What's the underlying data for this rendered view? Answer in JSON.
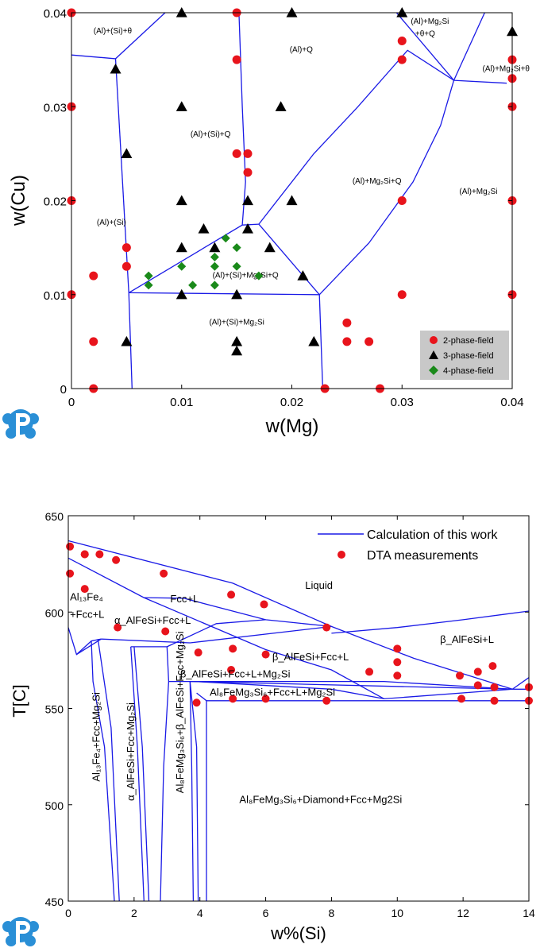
{
  "chart_data": [
    {
      "type": "scatter",
      "title": "",
      "xlabel": "w(Mg)",
      "ylabel": "w(Cu)",
      "xlim": [
        0,
        0.04
      ],
      "ylim": [
        0,
        0.04
      ],
      "xticks": [
        "0",
        "0.01",
        "0.02",
        "0.03",
        "0.04"
      ],
      "yticks": [
        "0",
        "0.01",
        "0.02",
        "0.03",
        "0.04"
      ],
      "grid": false,
      "legend_position": "bottom-right",
      "colors": {
        "two_phase": "#e8141c",
        "three_phase": "#000000",
        "four_phase": "#1a8a1a",
        "line": "#1a1ae6",
        "legend_bg": "#c8c8c8"
      },
      "legend": [
        "2-phase-field",
        "3-phase-field",
        "4-phase-field"
      ],
      "series": [
        {
          "name": "2-phase-field",
          "marker": "circle",
          "x": [
            0,
            0,
            0,
            0,
            0.002,
            0.002,
            0.002,
            0.005,
            0.005,
            0.015,
            0.015,
            0.015,
            0.016,
            0.016,
            0.03,
            0.03,
            0.03,
            0.03,
            0.04,
            0.04,
            0.04,
            0.04,
            0.04,
            0.025,
            0.025,
            0.027,
            0.023,
            0.028
          ],
          "y": [
            0.04,
            0.03,
            0.02,
            0.01,
            0.012,
            0.005,
            0,
            0.015,
            0.013,
            0.04,
            0.035,
            0.025,
            0.025,
            0.023,
            0.037,
            0.035,
            0.02,
            0.01,
            0.035,
            0.033,
            0.03,
            0.02,
            0.01,
            0.007,
            0.005,
            0.005,
            0,
            0
          ]
        },
        {
          "name": "3-phase-field",
          "marker": "triangle",
          "x": [
            0.01,
            0.02,
            0.03,
            0.04,
            0.004,
            0.01,
            0.019,
            0.005,
            0.01,
            0.016,
            0.02,
            0.012,
            0.016,
            0.01,
            0.018,
            0.021,
            0.01,
            0.015,
            0.005,
            0.015,
            0.015,
            0.022,
            0.013
          ],
          "y": [
            0.04,
            0.04,
            0.04,
            0.038,
            0.034,
            0.03,
            0.03,
            0.025,
            0.02,
            0.02,
            0.02,
            0.017,
            0.017,
            0.015,
            0.015,
            0.012,
            0.01,
            0.01,
            0.005,
            0.005,
            0.004,
            0.005,
            0.015
          ]
        },
        {
          "name": "4-phase-field",
          "marker": "diamond",
          "x": [
            0.014,
            0.015,
            0.013,
            0.013,
            0.01,
            0.007,
            0.007,
            0.011,
            0.013,
            0.015,
            0.017
          ],
          "y": [
            0.016,
            0.015,
            0.014,
            0.013,
            0.013,
            0.012,
            0.011,
            0.011,
            0.011,
            0.013,
            0.012
          ]
        }
      ],
      "boundaries": [
        [
          [
            0,
            0.0355
          ],
          [
            0.004,
            0.0351
          ],
          [
            0.0085,
            0.04
          ]
        ],
        [
          [
            0.004,
            0.0351
          ],
          [
            0.0052,
            0.0102
          ]
        ],
        [
          [
            0.0052,
            0.0102
          ],
          [
            0.0055,
            0
          ]
        ],
        [
          [
            0.0052,
            0.0102
          ],
          [
            0.0225,
            0.01
          ]
        ],
        [
          [
            0.0225,
            0.01
          ],
          [
            0.0228,
            0
          ]
        ],
        [
          [
            0.0052,
            0.0102
          ],
          [
            0.0155,
            0.0174
          ],
          [
            0.017,
            0.0175
          ]
        ],
        [
          [
            0.017,
            0.0175
          ],
          [
            0.0225,
            0.01
          ]
        ],
        [
          [
            0.0155,
            0.0174
          ],
          [
            0.0158,
            0.022
          ],
          [
            0.0155,
            0.03
          ],
          [
            0.0152,
            0.04
          ]
        ],
        [
          [
            0.017,
            0.0175
          ],
          [
            0.022,
            0.025
          ],
          [
            0.026,
            0.03
          ],
          [
            0.0305,
            0.036
          ],
          [
            0.0347,
            0.0328
          ]
        ],
        [
          [
            0.0225,
            0.01
          ],
          [
            0.027,
            0.0155
          ],
          [
            0.031,
            0.022
          ],
          [
            0.0335,
            0.028
          ],
          [
            0.0347,
            0.0328
          ]
        ],
        [
          [
            0.0347,
            0.0328
          ],
          [
            0.0395,
            0.0325
          ]
        ],
        [
          [
            0.0347,
            0.0328
          ],
          [
            0.0375,
            0.04
          ]
        ],
        [
          [
            0.0295,
            0.04
          ],
          [
            0.0347,
            0.0328
          ]
        ]
      ],
      "region_labels": [
        {
          "text": "(Al)+(Si)+θ",
          "x": 0.002,
          "y": 0.0378
        },
        {
          "text": "(Al)+Q",
          "x": 0.0198,
          "y": 0.0358
        },
        {
          "text": "(Al)+Mg₂Si",
          "x": 0.0308,
          "y": 0.0388
        },
        {
          "text": "+θ+Q",
          "x": 0.0312,
          "y": 0.0375
        },
        {
          "text": "(Al)+Mg₂Si+θ",
          "x": 0.0373,
          "y": 0.0338
        },
        {
          "text": "(Al)+(Si)+Q",
          "x": 0.0108,
          "y": 0.0268
        },
        {
          "text": "(Al)+Mg₂Si+Q",
          "x": 0.0255,
          "y": 0.0218
        },
        {
          "text": "(Al)+Mg₂Si",
          "x": 0.0352,
          "y": 0.0207
        },
        {
          "text": "(Al)+(Si)",
          "x": 0.0023,
          "y": 0.0174
        },
        {
          "text": "(Al)+(Si)+Mg₂Si+Q",
          "x": 0.0128,
          "y": 0.0118
        },
        {
          "text": "(Al)+(Si)+Mg₂Si",
          "x": 0.0125,
          "y": 0.0068
        }
      ]
    },
    {
      "type": "line",
      "title": "",
      "xlabel": "w%(Si)",
      "ylabel": "T[C]",
      "xlim": [
        0,
        14
      ],
      "ylim": [
        450,
        650
      ],
      "xticks": [
        "0",
        "2",
        "4",
        "6",
        "8",
        "10",
        "12",
        "14"
      ],
      "yticks": [
        "450",
        "500",
        "550",
        "600",
        "650"
      ],
      "grid": false,
      "legend_position": "top-right",
      "colors": {
        "line": "#1a1ae6",
        "marker": "#e8141c"
      },
      "legend": [
        "Calculation of this work",
        "DTA measurements"
      ],
      "series": [
        {
          "name": "DTA measurements",
          "marker": "circle",
          "x": [
            0.05,
            0.05,
            0.5,
            0.95,
            1.45,
            2.9,
            4.95,
            5.95,
            7.85,
            10.0,
            0.5,
            1.5,
            2.95,
            3.95,
            5.0,
            6.0,
            4.95,
            9.15,
            10.0,
            10.0,
            11.9,
            12.45,
            12.9,
            0.5,
            3.9,
            5.0,
            6.0,
            7.85,
            11.95,
            12.95,
            14.0,
            12.45,
            12.95,
            14.0
          ],
          "y": [
            634,
            620,
            630,
            630,
            627,
            620,
            609,
            604,
            592,
            581,
            612,
            592,
            590,
            579,
            581,
            578,
            570,
            569,
            574,
            567,
            567,
            569,
            572,
            630,
            553,
            555,
            555,
            554,
            555,
            554,
            554,
            562,
            561,
            561
          ]
        }
      ],
      "phase_lines": [
        [
          [
            0,
            637
          ],
          [
            5,
            615
          ],
          [
            8,
            592.5
          ],
          [
            10.5,
            576
          ],
          [
            13.5,
            560
          ]
        ],
        [
          [
            0,
            628
          ],
          [
            2.3,
            607.5
          ],
          [
            6,
            580.5
          ],
          [
            8,
            570
          ],
          [
            9.6,
            555
          ]
        ],
        [
          [
            2.3,
            607.5
          ],
          [
            3.5,
            607.2
          ],
          [
            6,
            596
          ],
          [
            8,
            592.5
          ]
        ],
        [
          [
            1.0,
            586
          ],
          [
            3.7,
            584
          ],
          [
            8,
            592.5
          ]
        ],
        [
          [
            3,
            582
          ],
          [
            4.5,
            594
          ],
          [
            6,
            596
          ]
        ],
        [
          [
            8,
            589
          ],
          [
            10,
            592
          ],
          [
            12,
            596
          ],
          [
            14,
            600.5
          ]
        ],
        [
          [
            0,
            592
          ],
          [
            0.25,
            578
          ],
          [
            1.0,
            586
          ]
        ],
        [
          [
            0.25,
            578
          ],
          [
            0.7,
            585
          ],
          [
            1.0,
            586
          ]
        ],
        [
          [
            0.7,
            585
          ],
          [
            0.75,
            564
          ],
          [
            1.1,
            530
          ],
          [
            1.4,
            450
          ]
        ],
        [
          [
            0.9,
            586
          ],
          [
            1.3,
            540
          ],
          [
            1.55,
            450
          ]
        ],
        [
          [
            1.9,
            582
          ],
          [
            2.1,
            530
          ],
          [
            2.3,
            450
          ]
        ],
        [
          [
            2.0,
            582
          ],
          [
            2.25,
            530
          ],
          [
            2.45,
            450
          ]
        ],
        [
          [
            1.9,
            582
          ],
          [
            2.7,
            582
          ],
          [
            3,
            582
          ],
          [
            3.05,
            564
          ]
        ],
        [
          [
            3.05,
            564
          ],
          [
            9.6,
            564
          ],
          [
            13.5,
            560
          ]
        ],
        [
          [
            3.05,
            564
          ],
          [
            2.9,
            520
          ],
          [
            2.8,
            450
          ]
        ],
        [
          [
            3.7,
            564
          ],
          [
            3.75,
            520
          ],
          [
            3.8,
            450
          ]
        ],
        [
          [
            3.7,
            564
          ],
          [
            3.9,
            530
          ],
          [
            3.95,
            450
          ]
        ],
        [
          [
            3.7,
            564
          ],
          [
            13.5,
            560
          ]
        ],
        [
          [
            3.9,
            558
          ],
          [
            4.2,
            554
          ],
          [
            14,
            554
          ]
        ],
        [
          [
            4.2,
            554
          ],
          [
            4.2,
            450
          ]
        ],
        [
          [
            3.85,
            564
          ],
          [
            8,
            560
          ],
          [
            9.6,
            555
          ],
          [
            13.5,
            560
          ],
          [
            14,
            566
          ]
        ],
        [
          [
            13.5,
            560
          ],
          [
            14,
            560
          ]
        ]
      ],
      "region_labels": [
        {
          "text": "Al₁₃Fe₄",
          "x": 0.05,
          "y": 606,
          "rotate": 0
        },
        {
          "text": "+Fcc+L",
          "x": 0.05,
          "y": 597,
          "rotate": 0
        },
        {
          "text": "Fcc+L",
          "x": 3.1,
          "y": 605,
          "rotate": 0
        },
        {
          "text": "Liquid",
          "x": 7.2,
          "y": 612,
          "rotate": 0
        },
        {
          "text": "α_AlFeSi+Fcc+L",
          "x": 1.4,
          "y": 594,
          "rotate": 0
        },
        {
          "text": "β_AlFeSi+L",
          "x": 11.3,
          "y": 584,
          "rotate": 0
        },
        {
          "text": "β_AlFeSi+Fcc+L",
          "x": 6.2,
          "y": 575,
          "rotate": 0
        },
        {
          "text": "β_AlFeSi+Fcc+L+Mg₂Si",
          "x": 3.4,
          "y": 566,
          "rotate": 0
        },
        {
          "text": "Al₈FeMg₃Si₆+Fcc+L+Mg₂Si",
          "x": 4.3,
          "y": 556.5,
          "rotate": 0
        },
        {
          "text": "Al₈FeMg₃Si₆+Diamond+Fcc+Mg2Si",
          "x": 5.2,
          "y": 501,
          "rotate": 0
        },
        {
          "text": "Al₁₃Fe₄+Fcc+Mg₂Si",
          "x": 0.95,
          "y": 512,
          "rotate": -90
        },
        {
          "text": "α_AlFeSi+Fcc+Mg₂Si",
          "x": 2.0,
          "y": 502,
          "rotate": -90
        },
        {
          "text": "Al₈FeMg₃Si₆+β_AlFeSi+Fcc+Mg₂Si",
          "x": 3.5,
          "y": 506,
          "rotate": -90
        }
      ]
    }
  ]
}
